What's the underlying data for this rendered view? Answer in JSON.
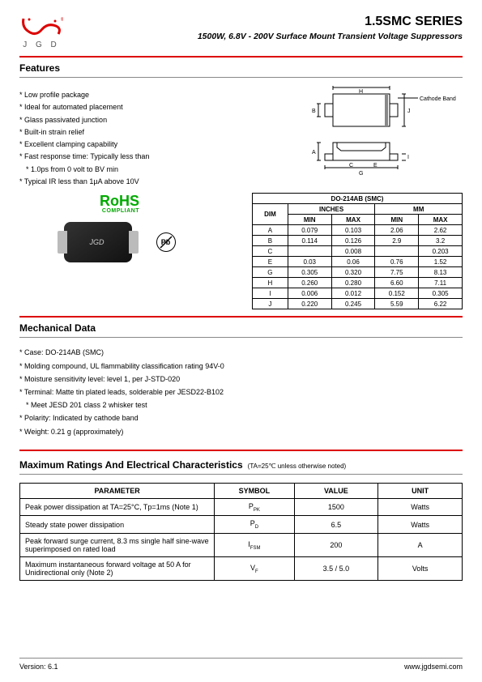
{
  "header": {
    "logo_letters": "J G D",
    "title": "1.5SMC SERIES",
    "subtitle": "1500W, 6.8V - 200V Surface Mount Transient Voltage Suppressors"
  },
  "features": {
    "heading": "Features",
    "items": [
      "Low profile package",
      "Ideal for automated placement",
      "Glass passivated junction",
      "Built-in strain relief",
      "Excellent clamping capability",
      "Fast response time: Typically less than",
      "1.0ps from 0 volt to BV min",
      "Typical IR less than 1µA above 10V"
    ],
    "cathode_label": "Cathode Band"
  },
  "rohs": {
    "ro": "Ro",
    "hs": "HS",
    "compliant": "COMPLIANT"
  },
  "chip_text": "JGD",
  "pb_text": "Pb",
  "dim_table": {
    "caption": "DO-214AB (SMC)",
    "col_dim": "DIM",
    "unit_in": "INCHES",
    "unit_mm": "MM",
    "min": "MIN",
    "max": "MAX",
    "rows": [
      {
        "d": "A",
        "imin": "0.079",
        "imax": "0.103",
        "mmin": "2.06",
        "mmax": "2.62"
      },
      {
        "d": "B",
        "imin": "0.114",
        "imax": "0.126",
        "mmin": "2.9",
        "mmax": "3.2"
      },
      {
        "d": "C",
        "imin": "",
        "imax": "0.008",
        "mmin": "",
        "mmax": "0.203"
      },
      {
        "d": "E",
        "imin": "0.03",
        "imax": "0.06",
        "mmin": "0.76",
        "mmax": "1.52"
      },
      {
        "d": "G",
        "imin": "0.305",
        "imax": "0.320",
        "mmin": "7.75",
        "mmax": "8.13"
      },
      {
        "d": "H",
        "imin": "0.260",
        "imax": "0.280",
        "mmin": "6.60",
        "mmax": "7.11"
      },
      {
        "d": "I",
        "imin": "0.006",
        "imax": "0.012",
        "mmin": "0.152",
        "mmax": "0.305"
      },
      {
        "d": "J",
        "imin": "0.220",
        "imax": "0.245",
        "mmin": "5.59",
        "mmax": "6.22"
      }
    ]
  },
  "mechanical": {
    "heading": "Mechanical Data",
    "items": [
      "Case: DO-214AB (SMC)",
      "Molding compound, UL flammability classification rating 94V-0",
      "Moisture sensitivity level: level 1, per J-STD-020",
      "Terminal: Matte tin plated leads, solderable per JESD22-B102",
      "Meet JESD 201 class 2 whisker test",
      "Polarity: Indicated by cathode band",
      "Weight: 0.21 g (approximately)"
    ]
  },
  "ratings": {
    "heading": "Maximum Ratings And Electrical Characteristics",
    "condition": "(TA=25℃ unless otherwise noted)",
    "cols": {
      "param": "PARAMETER",
      "symbol": "SYMBOL",
      "value": "VALUE",
      "unit": "UNIT"
    },
    "rows": [
      {
        "param": "Peak power dissipation at TA=25°C, Tp=1ms (Note 1)",
        "symbol": "P",
        "sub": "PK",
        "value": "1500",
        "unit": "Watts"
      },
      {
        "param": "Steady state power dissipation",
        "symbol": "P",
        "sub": "D",
        "value": "6.5",
        "unit": "Watts"
      },
      {
        "param": "Peak forward surge current, 8.3 ms single half sine-wave superimposed on rated load",
        "symbol": "I",
        "sub": "FSM",
        "value": "200",
        "unit": "A"
      },
      {
        "param": "Maximum instantaneous forward voltage at 50 A for Unidirectional only (Note 2)",
        "symbol": "V",
        "sub": "F",
        "value": "3.5 / 5.0",
        "unit": "Volts"
      }
    ]
  },
  "footer": {
    "version": "Version: 6.1",
    "url": "www.jgdsemi.com"
  }
}
